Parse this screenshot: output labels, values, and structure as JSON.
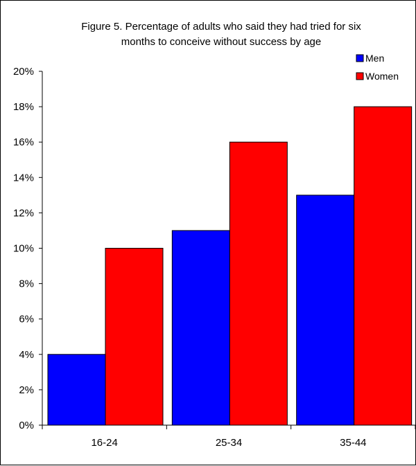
{
  "chart_data": {
    "type": "bar",
    "title_lines": [
      "Figure 5. Percentage of adults who said they had tried for six",
      "months to conceive without success by age"
    ],
    "categories": [
      "16-24",
      "25-34",
      "35-44"
    ],
    "series": [
      {
        "name": "Men",
        "values": [
          4,
          11,
          13
        ],
        "color": "#0000FF"
      },
      {
        "name": "Women",
        "values": [
          10,
          16,
          18
        ],
        "color": "#FF0000"
      }
    ],
    "ylim": [
      0,
      20
    ],
    "yticks": [
      0,
      2,
      4,
      6,
      8,
      10,
      12,
      14,
      16,
      18,
      20
    ],
    "y_unit": "%",
    "grid": false,
    "legend_position": "top-right"
  }
}
